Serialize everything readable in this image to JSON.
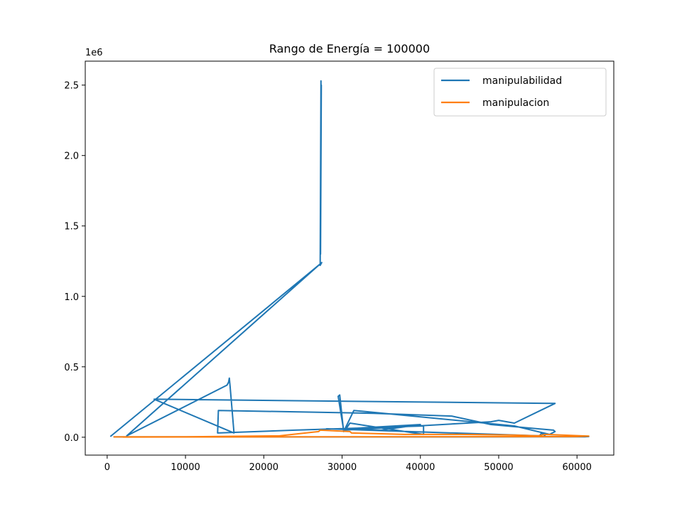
{
  "chart_data": {
    "type": "line",
    "title": "Rango de Energía = 100000",
    "xlabel": "",
    "ylabel": "",
    "y_offset_label": "1e6",
    "xlim": [
      -2800,
      64700
    ],
    "ylim": [
      -0.127,
      2.67
    ],
    "x_ticks": [
      0,
      10000,
      20000,
      30000,
      40000,
      50000,
      60000
    ],
    "x_tick_labels": [
      "0",
      "10000",
      "20000",
      "30000",
      "40000",
      "50000",
      "60000"
    ],
    "y_ticks": [
      0.0,
      0.5,
      1.0,
      1.5,
      2.0,
      2.5
    ],
    "y_tick_labels": [
      "0.0",
      "0.5",
      "1.0",
      "1.5",
      "2.0",
      "2.5"
    ],
    "grid": false,
    "legend_position": "top-right",
    "series": [
      {
        "name": "manipulabilidad",
        "color": "#1f77b4",
        "x": [
          400,
          27200,
          27300,
          27200,
          27300,
          27250,
          27350,
          27250,
          27300,
          27200,
          27400,
          2500,
          15300,
          15500,
          15600,
          15700,
          16200,
          6000,
          57000,
          57200,
          52000,
          50000,
          49000,
          30200,
          29500,
          29700,
          29800,
          30200,
          31500,
          52000,
          56500,
          57200,
          57000,
          49000,
          44000,
          34000,
          14200,
          14100,
          24000,
          40400,
          40400,
          31000,
          30500,
          40000,
          35000,
          28000,
          55200,
          55500,
          56000,
          61500,
          61000,
          800
        ],
        "y": [
          0.005,
          1.23,
          2.53,
          1.25,
          2.52,
          1.3,
          2.5,
          1.35,
          2.45,
          1.22,
          1.24,
          0.01,
          0.37,
          0.39,
          0.42,
          0.36,
          0.03,
          0.27,
          0.24,
          0.24,
          0.1,
          0.12,
          0.11,
          0.05,
          0.29,
          0.3,
          0.25,
          0.04,
          0.19,
          0.08,
          0.02,
          0.04,
          0.05,
          0.09,
          0.15,
          0.17,
          0.19,
          0.03,
          0.05,
          0.08,
          0.02,
          0.1,
          0.06,
          0.09,
          0.05,
          0.06,
          0.01,
          0.03,
          0.005,
          0.005,
          0.003,
          0.002
        ]
      },
      {
        "name": "manipulacion",
        "color": "#ff7f0e",
        "x": [
          800,
          10000,
          22000,
          27000,
          27200,
          31000,
          31200,
          38000,
          45000,
          52000,
          55000,
          56000,
          61500,
          60000,
          30000,
          20000,
          2000
        ],
        "y": [
          0.002,
          0.003,
          0.01,
          0.04,
          0.05,
          0.04,
          0.03,
          0.02,
          0.02,
          0.015,
          0.01,
          0.02,
          0.008,
          0.005,
          0.003,
          0.002,
          0.001
        ]
      }
    ]
  }
}
